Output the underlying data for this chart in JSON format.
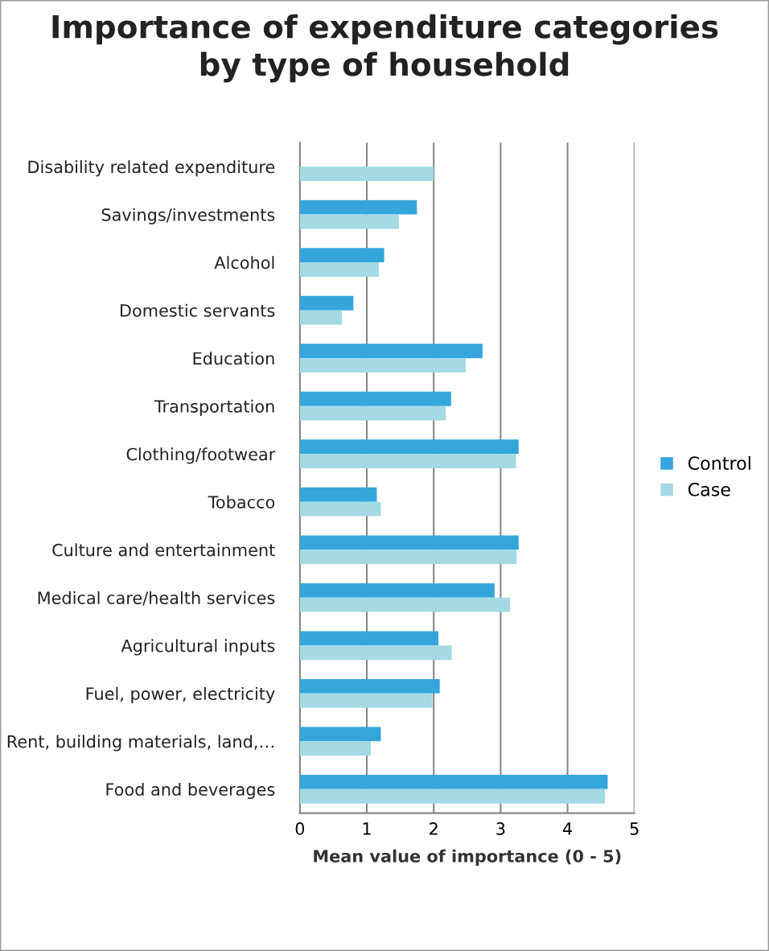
{
  "chart_data": {
    "type": "bar",
    "orientation": "horizontal",
    "title": "Importance of expenditure categories\nby type of household",
    "xlabel": "Mean value of importance (0 - 5)",
    "categories": [
      "Disability related expenditure",
      "Savings/investments",
      "Alcohol",
      "Domestic servants",
      "Education",
      "Transportation",
      "Clothing/footwear",
      "Tobacco",
      "Culture and entertainment",
      "Medical care/health services",
      "Agricultural inputs",
      "Fuel, power, electricity",
      "Rent, building materials, land,…",
      "Food and beverages"
    ],
    "series": [
      {
        "name": "Control",
        "color": "#35a6dc",
        "values": [
          null,
          1.75,
          1.26,
          0.8,
          2.73,
          2.26,
          3.27,
          1.15,
          3.27,
          2.91,
          2.07,
          2.09,
          1.21,
          4.6
        ]
      },
      {
        "name": "Case",
        "color": "#a4dae3",
        "values": [
          2.0,
          1.48,
          1.18,
          0.63,
          2.48,
          2.18,
          3.23,
          1.21,
          3.24,
          3.14,
          2.27,
          1.98,
          1.06,
          4.56
        ]
      }
    ],
    "xlim": [
      0,
      5
    ],
    "xticks": [
      0,
      1,
      2,
      3,
      4,
      5
    ],
    "grid": "x",
    "legend": "right"
  }
}
